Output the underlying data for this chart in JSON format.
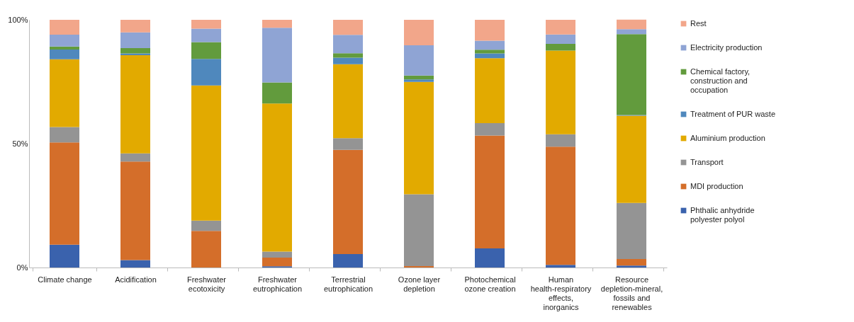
{
  "chart_data": {
    "type": "bar",
    "stacked": true,
    "legend": "right",
    "grid": false,
    "categories": [
      "Climate change",
      "Acidification",
      "Freshwater ecotoxicity",
      "Freshwater eutrophication",
      "Terrestrial eutrophication",
      "Ozone layer depletion",
      "Photochemical ozone creation",
      "Human health-respiratory effects, inorganics",
      "Resource depletion-mineral, fossils and renewables"
    ],
    "ylim": [
      0,
      100
    ],
    "yticks": [
      {
        "value": 0,
        "label": "0%"
      },
      {
        "value": 50,
        "label": "50%"
      },
      {
        "value": 100,
        "label": "100%"
      }
    ],
    "series": [
      {
        "name": "Phthalic anhydride polyester polyol",
        "color": "#3a62ad",
        "values": [
          9.2,
          3,
          0,
          0.5,
          5.4,
          0,
          7.7,
          1.1,
          0.8
        ]
      },
      {
        "name": "MDI production",
        "color": "#d46e2a",
        "values": [
          41.3,
          39.8,
          14.8,
          3.5,
          42.1,
          0.6,
          45.6,
          47.7,
          2.6
        ]
      },
      {
        "name": "Transport",
        "color": "#949494",
        "values": [
          6.2,
          3.3,
          4.1,
          2.4,
          4.7,
          29,
          5,
          5,
          22.7
        ]
      },
      {
        "name": "Aluminium production",
        "color": "#e2aa00",
        "values": [
          27.4,
          39.6,
          54.6,
          59.8,
          29.9,
          45.3,
          26.2,
          33.8,
          35.2
        ]
      },
      {
        "name": "Treatment of PUR waste",
        "color": "#4f88bd",
        "values": [
          3.9,
          0.7,
          10.7,
          0,
          2.6,
          1,
          1.9,
          0,
          0.3
        ]
      },
      {
        "name": "Chemical factory, construction and occupation",
        "color": "#629b3d",
        "values": [
          1.2,
          2.2,
          6.8,
          8.5,
          1.8,
          1.6,
          1.5,
          2.7,
          32.6
        ]
      },
      {
        "name": "Electricity production",
        "color": "#8fa4d4",
        "values": [
          4.8,
          6.3,
          5.4,
          22.1,
          7.4,
          12.2,
          3.7,
          3.8,
          2
        ]
      },
      {
        "name": "Rest",
        "color": "#f2a68a",
        "values": [
          6,
          5.1,
          3.6,
          3.2,
          6.1,
          10.3,
          8.4,
          5.9,
          3.9
        ]
      }
    ]
  }
}
